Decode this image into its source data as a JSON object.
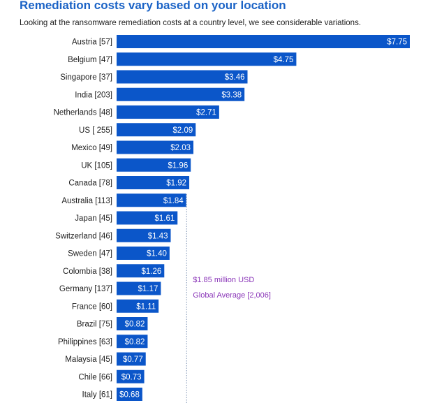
{
  "title": "Remediation costs vary based on your location",
  "subtitle": "Looking at the ransomware remediation costs at a country level, we see considerable variations.",
  "colors": {
    "title": "#1b63c6",
    "bar": "#0b56c9",
    "bar_label": "#ffffff",
    "average_line": "#7a8fb0",
    "average_text": "#8a35b8"
  },
  "chart_data": {
    "type": "bar",
    "orientation": "horizontal",
    "categories": [
      "Austria [57]",
      "Belgium [47]",
      "Singapore [37]",
      "India [203]",
      "Netherlands [48]",
      "US [ 255]",
      "Mexico [49]",
      "UK [105]",
      "Canada [78]",
      "Australia [113]",
      "Japan [45]",
      "Switzerland [46]",
      "Sweden [47]",
      "Colombia [38]",
      "Germany [137]",
      "France [60]",
      "Brazil [75]",
      "Philippines [63]",
      "Malaysia [45]",
      "Chile [66]",
      "Italy [61]"
    ],
    "values": [
      7.75,
      4.75,
      3.46,
      3.38,
      2.71,
      2.09,
      2.03,
      1.96,
      1.92,
      1.84,
      1.61,
      1.43,
      1.4,
      1.26,
      1.17,
      1.11,
      0.82,
      0.82,
      0.77,
      0.73,
      0.68
    ],
    "value_labels": [
      "$7.75",
      "$4.75",
      "$3.46",
      "$3.38",
      "$2.71",
      "$2.09",
      "$2.03",
      "$1.96",
      "$1.92",
      "$1.84",
      "$1.61",
      "$1.43",
      "$1.40",
      "$1.26",
      "$1.17",
      "$1.11",
      "$0.82",
      "$0.82",
      "$0.77",
      "$0.73",
      "$0.68"
    ],
    "xlim": [
      0,
      7.75
    ],
    "grid": false,
    "reference_line": {
      "value": 1.85,
      "label_line1": "$1.85 million USD",
      "label_line2": "Global Average [2,006]"
    }
  }
}
